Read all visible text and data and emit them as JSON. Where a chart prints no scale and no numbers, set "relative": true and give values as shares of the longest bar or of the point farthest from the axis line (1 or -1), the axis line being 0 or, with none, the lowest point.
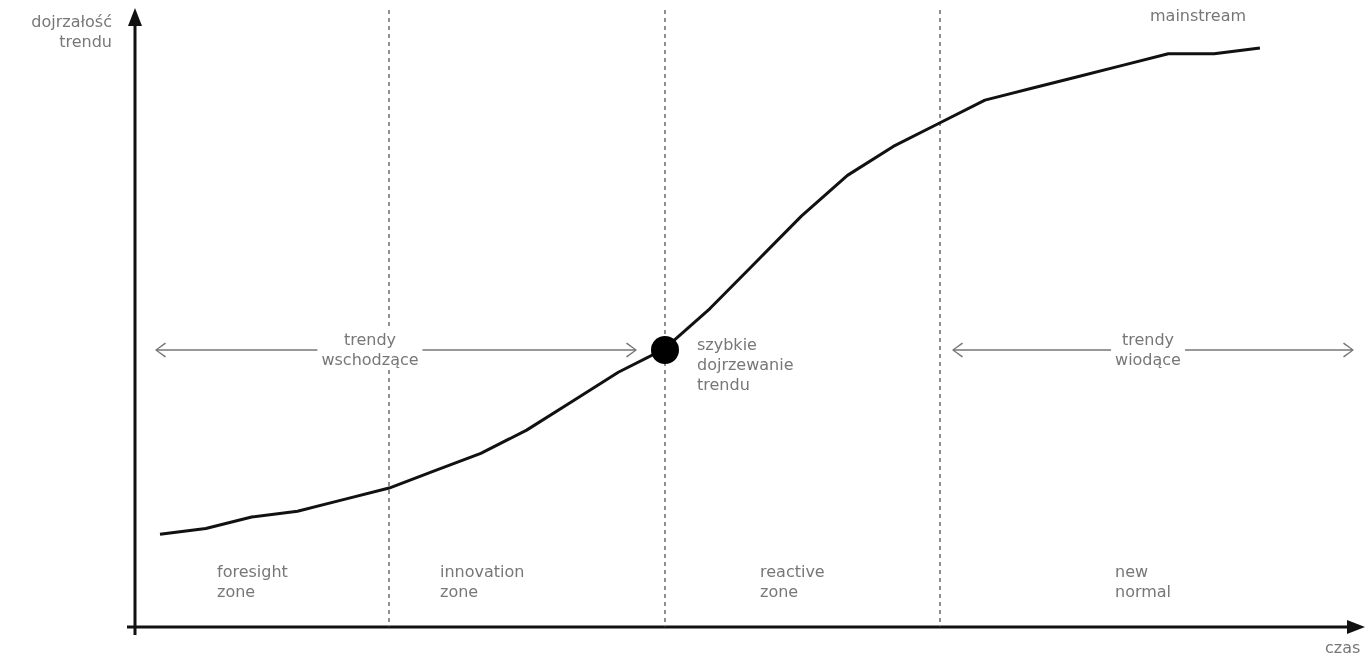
{
  "chart_data": {
    "type": "line",
    "relative": true,
    "xlabel": "czas",
    "ylabel": "dojrzałość trendu",
    "legend": false,
    "grid": "x",
    "categories": [
      null,
      null,
      null,
      null,
      null,
      null,
      null,
      null,
      null,
      null,
      null,
      null,
      null,
      null,
      null,
      null,
      null,
      null,
      null,
      null,
      null,
      null,
      null,
      null,
      null
    ],
    "series": [
      {
        "color": "#111111",
        "values": [
          0.16,
          0.17,
          0.19,
          0.2,
          0.22,
          0.24,
          0.27,
          0.3,
          0.34,
          0.39,
          0.44,
          0.48,
          0.55,
          0.63,
          0.71,
          0.78,
          0.83,
          0.87,
          0.91,
          0.93,
          0.95,
          0.97,
          0.99,
          0.99,
          1
        ]
      }
    ],
    "marker": "none",
    "annotations": [
      "mainstream",
      "szybkie dojrzewanie trendu",
      "trendy wschodzące",
      "trendy wiodące",
      "foresight zone",
      "innovation zone",
      "reactive zone",
      "new normal"
    ]
  }
}
